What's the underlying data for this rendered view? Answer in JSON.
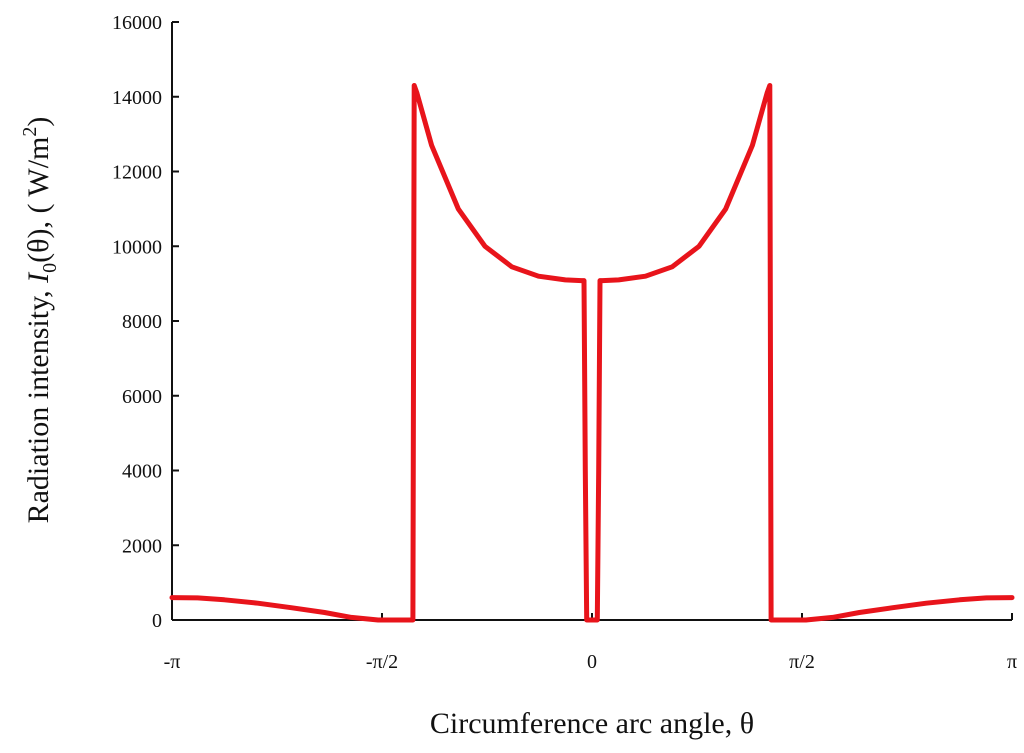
{
  "chart_data": {
    "type": "line",
    "xlabel": "Circumference arc angle, θ",
    "ylabel_parts": {
      "prefix": "Radiation intensity, ",
      "symbol": "I",
      "subscript": "0",
      "arg": "(θ), ( W/m",
      "superscript": "2",
      "suffix": ")"
    },
    "xlim": [
      -3.1416,
      3.1416
    ],
    "ylim": [
      0,
      16000
    ],
    "x_ticks": [
      {
        "value": -3.1416,
        "label": "-π"
      },
      {
        "value": -1.5708,
        "label": "-π/2"
      },
      {
        "value": 0,
        "label": "0"
      },
      {
        "value": 1.5708,
        "label": "π/2"
      },
      {
        "value": 3.1416,
        "label": "π"
      }
    ],
    "y_ticks": [
      {
        "value": 0,
        "label": "0"
      },
      {
        "value": 2000,
        "label": "2000"
      },
      {
        "value": 4000,
        "label": "4000"
      },
      {
        "value": 6000,
        "label": "6000"
      },
      {
        "value": 8000,
        "label": "8000"
      },
      {
        "value": 10000,
        "label": "10000"
      },
      {
        "value": 12000,
        "label": "12000"
      },
      {
        "value": 14000,
        "label": "14000"
      },
      {
        "value": 16000,
        "label": "16000"
      }
    ],
    "grid": false,
    "series": [
      {
        "color": "#e8141b",
        "x": [
          -3.1416,
          -2.95,
          -2.75,
          -2.5,
          -2.25,
          -2.0,
          -1.8,
          -1.6,
          -1.5,
          -1.4,
          -1.34,
          -1.33,
          -1.31,
          -1.2,
          -1.0,
          -0.8,
          -0.6,
          -0.4,
          -0.2,
          -0.08,
          -0.06,
          -0.05,
          -0.04,
          0.04,
          0.05,
          0.06,
          0.08,
          0.2,
          0.4,
          0.6,
          0.8,
          1.0,
          1.2,
          1.31,
          1.33,
          1.34,
          1.4,
          1.5,
          1.6,
          1.8,
          2.0,
          2.25,
          2.5,
          2.75,
          2.95,
          3.1416
        ],
        "y": [
          600,
          590,
          540,
          450,
          330,
          200,
          70,
          0,
          0,
          0,
          0,
          14300,
          14100,
          12700,
          11000,
          10000,
          9450,
          9200,
          9100,
          9080,
          9080,
          4000,
          0,
          0,
          4000,
          9080,
          9080,
          9100,
          9200,
          9450,
          10000,
          11000,
          12700,
          14100,
          14300,
          0,
          0,
          0,
          0,
          70,
          200,
          330,
          450,
          540,
          590,
          600
        ]
      }
    ]
  }
}
